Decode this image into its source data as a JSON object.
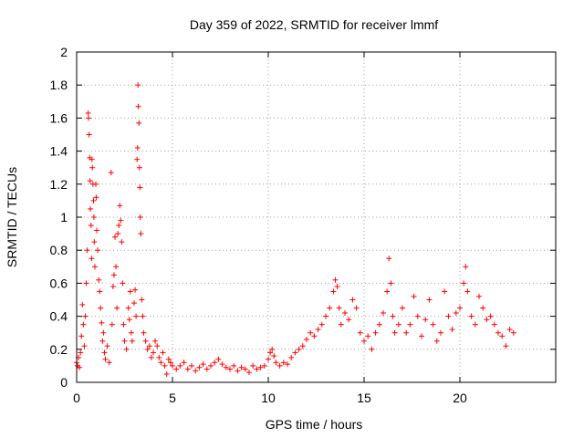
{
  "chart_data": {
    "type": "scatter",
    "title": "Day 359 of 2022, SRMTID for receiver lmmf",
    "xlabel": "GPS time / hours",
    "ylabel": "SRMTID / TECUs",
    "xlim": [
      0,
      25
    ],
    "ylim": [
      0,
      2
    ],
    "xticks": [
      0,
      5,
      10,
      15,
      20
    ],
    "yticks": [
      0,
      0.2,
      0.4,
      0.6,
      0.8,
      1,
      1.2,
      1.4,
      1.6,
      1.8,
      2
    ],
    "grid": true,
    "marker": "+",
    "color": "#ff0000",
    "series": [
      {
        "name": "lmmf",
        "points": [
          [
            0.0,
            0.12
          ],
          [
            0.05,
            0.1
          ],
          [
            0.1,
            0.15
          ],
          [
            0.15,
            0.09
          ],
          [
            0.2,
            0.18
          ],
          [
            0.25,
            0.28
          ],
          [
            0.3,
            0.47
          ],
          [
            0.35,
            0.35
          ],
          [
            0.4,
            0.22
          ],
          [
            0.45,
            0.4
          ],
          [
            0.5,
            0.6
          ],
          [
            0.55,
            0.8
          ],
          [
            0.6,
            1.63
          ],
          [
            0.62,
            1.6
          ],
          [
            0.65,
            1.5
          ],
          [
            0.68,
            1.36
          ],
          [
            0.7,
            1.22
          ],
          [
            0.72,
            1.05
          ],
          [
            0.75,
            0.95
          ],
          [
            0.78,
            0.75
          ],
          [
            0.8,
            1.35
          ],
          [
            0.82,
            1.3
          ],
          [
            0.85,
            1.2
          ],
          [
            0.88,
            1.1
          ],
          [
            0.9,
            1.0
          ],
          [
            0.92,
            0.85
          ],
          [
            0.95,
            0.7
          ],
          [
            1.0,
            1.2
          ],
          [
            1.02,
            1.12
          ],
          [
            1.05,
            0.92
          ],
          [
            1.1,
            0.8
          ],
          [
            1.15,
            0.62
          ],
          [
            1.2,
            0.55
          ],
          [
            1.25,
            0.45
          ],
          [
            1.3,
            0.36
          ],
          [
            1.35,
            0.25
          ],
          [
            1.4,
            0.3
          ],
          [
            1.45,
            0.18
          ],
          [
            1.5,
            0.14
          ],
          [
            1.6,
            0.22
          ],
          [
            1.7,
            0.12
          ],
          [
            1.8,
            1.27
          ],
          [
            1.85,
            0.35
          ],
          [
            1.9,
            0.58
          ],
          [
            1.95,
            0.65
          ],
          [
            2.0,
            0.88
          ],
          [
            2.05,
            0.7
          ],
          [
            2.1,
            0.45
          ],
          [
            2.15,
            0.9
          ],
          [
            2.2,
            0.95
          ],
          [
            2.25,
            1.07
          ],
          [
            2.3,
            0.98
          ],
          [
            2.35,
            0.85
          ],
          [
            2.4,
            0.6
          ],
          [
            2.45,
            0.35
          ],
          [
            2.5,
            0.25
          ],
          [
            2.6,
            0.2
          ],
          [
            2.7,
            0.45
          ],
          [
            2.75,
            0.38
          ],
          [
            2.8,
            0.55
          ],
          [
            2.85,
            0.3
          ],
          [
            2.9,
            0.25
          ],
          [
            3.0,
            0.48
          ],
          [
            3.05,
            0.56
          ],
          [
            3.1,
            0.4
          ],
          [
            3.15,
            1.35
          ],
          [
            3.18,
            1.42
          ],
          [
            3.2,
            1.8
          ],
          [
            3.22,
            1.67
          ],
          [
            3.25,
            1.57
          ],
          [
            3.28,
            1.3
          ],
          [
            3.3,
            1.18
          ],
          [
            3.32,
            1.0
          ],
          [
            3.35,
            0.9
          ],
          [
            3.4,
            0.5
          ],
          [
            3.45,
            0.4
          ],
          [
            3.5,
            0.3
          ],
          [
            3.6,
            0.25
          ],
          [
            3.7,
            0.2
          ],
          [
            3.8,
            0.22
          ],
          [
            3.9,
            0.15
          ],
          [
            4.0,
            0.18
          ],
          [
            4.1,
            0.25
          ],
          [
            4.2,
            0.22
          ],
          [
            4.3,
            0.15
          ],
          [
            4.4,
            0.12
          ],
          [
            4.5,
            0.18
          ],
          [
            4.6,
            0.1
          ],
          [
            4.7,
            0.05
          ],
          [
            4.8,
            0.14
          ],
          [
            4.9,
            0.12
          ],
          [
            5.0,
            0.1
          ],
          [
            5.2,
            0.08
          ],
          [
            5.4,
            0.1
          ],
          [
            5.6,
            0.12
          ],
          [
            5.8,
            0.08
          ],
          [
            6.0,
            0.1
          ],
          [
            6.2,
            0.07
          ],
          [
            6.4,
            0.09
          ],
          [
            6.6,
            0.11
          ],
          [
            6.8,
            0.08
          ],
          [
            7.0,
            0.1
          ],
          [
            7.2,
            0.12
          ],
          [
            7.4,
            0.14
          ],
          [
            7.6,
            0.11
          ],
          [
            7.8,
            0.09
          ],
          [
            8.0,
            0.08
          ],
          [
            8.2,
            0.1
          ],
          [
            8.4,
            0.07
          ],
          [
            8.6,
            0.09
          ],
          [
            8.8,
            0.08
          ],
          [
            9.0,
            0.06
          ],
          [
            9.2,
            0.1
          ],
          [
            9.4,
            0.08
          ],
          [
            9.6,
            0.09
          ],
          [
            9.8,
            0.1
          ],
          [
            10.0,
            0.14
          ],
          [
            10.1,
            0.18
          ],
          [
            10.2,
            0.2
          ],
          [
            10.3,
            0.16
          ],
          [
            10.4,
            0.12
          ],
          [
            10.6,
            0.1
          ],
          [
            10.8,
            0.12
          ],
          [
            11.0,
            0.11
          ],
          [
            11.2,
            0.15
          ],
          [
            11.4,
            0.18
          ],
          [
            11.6,
            0.2
          ],
          [
            11.8,
            0.22
          ],
          [
            12.0,
            0.26
          ],
          [
            12.2,
            0.3
          ],
          [
            12.4,
            0.28
          ],
          [
            12.6,
            0.32
          ],
          [
            12.8,
            0.35
          ],
          [
            13.0,
            0.4
          ],
          [
            13.2,
            0.45
          ],
          [
            13.4,
            0.55
          ],
          [
            13.5,
            0.62
          ],
          [
            13.6,
            0.58
          ],
          [
            13.7,
            0.45
          ],
          [
            13.8,
            0.35
          ],
          [
            14.0,
            0.42
          ],
          [
            14.2,
            0.38
          ],
          [
            14.4,
            0.5
          ],
          [
            14.6,
            0.45
          ],
          [
            14.8,
            0.3
          ],
          [
            15.0,
            0.25
          ],
          [
            15.2,
            0.28
          ],
          [
            15.4,
            0.2
          ],
          [
            15.6,
            0.3
          ],
          [
            15.8,
            0.35
          ],
          [
            16.0,
            0.42
          ],
          [
            16.2,
            0.55
          ],
          [
            16.3,
            0.75
          ],
          [
            16.4,
            0.6
          ],
          [
            16.5,
            0.4
          ],
          [
            16.6,
            0.3
          ],
          [
            16.8,
            0.35
          ],
          [
            17.0,
            0.45
          ],
          [
            17.2,
            0.3
          ],
          [
            17.4,
            0.35
          ],
          [
            17.6,
            0.52
          ],
          [
            17.8,
            0.4
          ],
          [
            18.0,
            0.28
          ],
          [
            18.2,
            0.38
          ],
          [
            18.4,
            0.5
          ],
          [
            18.6,
            0.35
          ],
          [
            18.8,
            0.25
          ],
          [
            19.0,
            0.3
          ],
          [
            19.2,
            0.55
          ],
          [
            19.4,
            0.4
          ],
          [
            19.6,
            0.32
          ],
          [
            19.8,
            0.42
          ],
          [
            20.0,
            0.45
          ],
          [
            20.2,
            0.6
          ],
          [
            20.3,
            0.7
          ],
          [
            20.4,
            0.55
          ],
          [
            20.6,
            0.4
          ],
          [
            20.8,
            0.35
          ],
          [
            21.0,
            0.52
          ],
          [
            21.2,
            0.45
          ],
          [
            21.4,
            0.38
          ],
          [
            21.6,
            0.4
          ],
          [
            21.8,
            0.35
          ],
          [
            22.0,
            0.3
          ],
          [
            22.2,
            0.28
          ],
          [
            22.4,
            0.22
          ],
          [
            22.6,
            0.32
          ],
          [
            22.8,
            0.3
          ]
        ]
      }
    ]
  }
}
